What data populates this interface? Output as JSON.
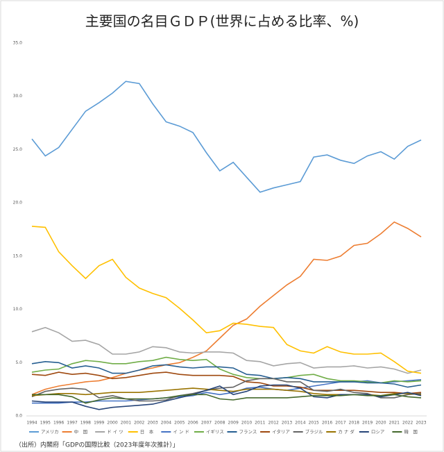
{
  "chart_data": {
    "type": "line",
    "title": "主要国の名目ＧＤＰ(世界に占める比率、%)",
    "categories": [
      "1994",
      "1995",
      "1996",
      "1997",
      "1998",
      "1999",
      "2000",
      "2001",
      "2002",
      "2003",
      "2004",
      "2005",
      "2006",
      "2007",
      "2008",
      "2009",
      "2010",
      "2011",
      "2012",
      "2013",
      "2014",
      "2015",
      "2016",
      "2017",
      "2018",
      "2019",
      "2020",
      "2021",
      "2022",
      "2023"
    ],
    "ylim": [
      0,
      35
    ],
    "yticks": [
      {
        "value": 0,
        "label": "0.0"
      },
      {
        "value": 5,
        "label": "5.0"
      },
      {
        "value": 10,
        "label": "10.0"
      },
      {
        "value": 15,
        "label": "15.0"
      },
      {
        "value": 20,
        "label": "20.0"
      },
      {
        "value": 25,
        "label": "25.0"
      },
      {
        "value": 30,
        "label": "30.0"
      },
      {
        "value": 35,
        "label": "35.0"
      }
    ],
    "grid": false,
    "legend": "bottom",
    "series": [
      {
        "name": "アメリカ",
        "color": "#5b9bd5",
        "values": [
          26.0,
          24.4,
          25.2,
          26.9,
          28.6,
          29.4,
          30.3,
          31.4,
          31.2,
          29.3,
          27.6,
          27.2,
          26.6,
          24.7,
          23.0,
          23.8,
          22.4,
          21.0,
          21.4,
          21.7,
          22.0,
          24.3,
          24.5,
          24.0,
          23.7,
          24.4,
          24.8,
          24.1,
          25.3,
          25.9
        ]
      },
      {
        "name": "中　国",
        "color": "#ed7d31",
        "values": [
          2.0,
          2.5,
          2.8,
          3.0,
          3.2,
          3.3,
          3.6,
          4.0,
          4.3,
          4.5,
          4.8,
          5.0,
          5.5,
          6.1,
          7.3,
          8.5,
          9.1,
          10.3,
          11.3,
          12.3,
          13.1,
          14.7,
          14.6,
          15.0,
          16.0,
          16.2,
          17.1,
          18.2,
          17.6,
          16.8
        ]
      },
      {
        "name": "ド イ ツ",
        "color": "#a5a5a5",
        "values": [
          7.9,
          8.3,
          7.8,
          7.0,
          7.1,
          6.7,
          5.8,
          5.8,
          6.0,
          6.5,
          6.4,
          6.0,
          5.9,
          6.0,
          6.0,
          5.9,
          5.2,
          5.1,
          4.7,
          4.9,
          5.0,
          4.5,
          4.6,
          4.6,
          4.7,
          4.5,
          4.6,
          4.4,
          4.0,
          4.3
        ]
      },
      {
        "name": "日　本",
        "color": "#ffc000",
        "values": [
          17.8,
          17.7,
          15.4,
          14.1,
          12.9,
          14.1,
          14.7,
          13.0,
          12.0,
          11.5,
          11.1,
          10.1,
          9.0,
          7.8,
          8.0,
          8.7,
          8.6,
          8.4,
          8.3,
          6.7,
          6.1,
          5.9,
          6.5,
          6.0,
          5.8,
          5.8,
          5.9,
          5.1,
          4.2,
          4.0
        ]
      },
      {
        "name": "イ ン ド",
        "color": "#4472c4",
        "values": [
          1.2,
          1.2,
          1.2,
          1.3,
          1.3,
          1.4,
          1.4,
          1.4,
          1.5,
          1.6,
          1.7,
          1.8,
          1.9,
          2.2,
          2.0,
          2.2,
          2.6,
          2.7,
          2.5,
          2.4,
          2.6,
          2.8,
          3.0,
          3.2,
          3.2,
          3.3,
          3.1,
          3.2,
          3.3,
          3.4
        ]
      },
      {
        "name": "イギリス",
        "color": "#70ad47",
        "values": [
          4.1,
          4.3,
          4.4,
          4.9,
          5.2,
          5.1,
          4.9,
          4.9,
          5.1,
          5.2,
          5.5,
          5.3,
          5.2,
          5.3,
          4.4,
          3.9,
          3.6,
          3.5,
          3.5,
          3.6,
          3.8,
          3.9,
          3.5,
          3.3,
          3.3,
          3.2,
          3.1,
          3.3,
          3.2,
          3.3
        ]
      },
      {
        "name": "フランス",
        "color": "#255e91",
        "values": [
          4.9,
          5.1,
          5.0,
          4.5,
          4.7,
          4.5,
          4.0,
          4.0,
          4.3,
          4.7,
          4.8,
          4.6,
          4.5,
          4.6,
          4.6,
          4.5,
          3.9,
          3.8,
          3.5,
          3.6,
          3.5,
          3.2,
          3.2,
          3.2,
          3.2,
          3.1,
          3.1,
          3.0,
          2.7,
          2.9
        ]
      },
      {
        "name": "イタリア",
        "color": "#9e480e",
        "values": [
          3.9,
          3.8,
          4.1,
          3.9,
          4.0,
          3.8,
          3.5,
          3.6,
          3.8,
          4.0,
          4.1,
          3.9,
          3.8,
          3.8,
          3.8,
          3.7,
          3.2,
          3.1,
          2.8,
          2.8,
          2.7,
          2.4,
          2.4,
          2.4,
          2.4,
          2.3,
          2.2,
          2.2,
          2.1,
          2.2
        ]
      },
      {
        "name": "ブラジル",
        "color": "#636363",
        "values": [
          1.8,
          2.3,
          2.5,
          2.6,
          2.5,
          1.7,
          1.9,
          1.6,
          1.4,
          1.4,
          1.5,
          1.9,
          2.1,
          2.4,
          2.6,
          2.7,
          3.3,
          3.5,
          3.5,
          3.2,
          3.2,
          2.4,
          2.3,
          2.5,
          2.2,
          2.1,
          1.7,
          1.7,
          2.0,
          2.1
        ]
      },
      {
        "name": "カ ナ ダ",
        "color": "#997300",
        "values": [
          1.9,
          2.0,
          2.1,
          2.1,
          2.0,
          2.1,
          2.2,
          2.2,
          2.2,
          2.3,
          2.4,
          2.5,
          2.6,
          2.5,
          2.4,
          2.3,
          2.5,
          2.5,
          2.5,
          2.4,
          2.3,
          2.1,
          2.0,
          2.0,
          2.0,
          2.0,
          1.9,
          2.1,
          2.1,
          2.0
        ]
      },
      {
        "name": "ロシア",
        "color": "#264478",
        "values": [
          1.4,
          1.3,
          1.3,
          1.3,
          0.9,
          0.6,
          0.8,
          0.9,
          1.0,
          1.1,
          1.4,
          1.7,
          2.0,
          2.4,
          2.8,
          2.0,
          2.3,
          2.8,
          2.9,
          2.9,
          2.6,
          1.8,
          1.7,
          2.0,
          2.0,
          2.0,
          1.8,
          2.0,
          2.2,
          1.9
        ]
      },
      {
        "name": "韓　国",
        "color": "#43682b",
        "values": [
          2.0,
          2.0,
          2.0,
          1.8,
          1.2,
          1.5,
          1.7,
          1.6,
          1.6,
          1.6,
          1.7,
          1.9,
          2.0,
          2.0,
          1.6,
          1.5,
          1.7,
          1.7,
          1.7,
          1.7,
          1.8,
          1.9,
          1.9,
          1.9,
          2.0,
          1.9,
          1.9,
          2.0,
          1.8,
          1.7
        ]
      }
    ]
  },
  "source": "（出所）内閣府「GDPの国際比較（2023年度年次推計）」"
}
